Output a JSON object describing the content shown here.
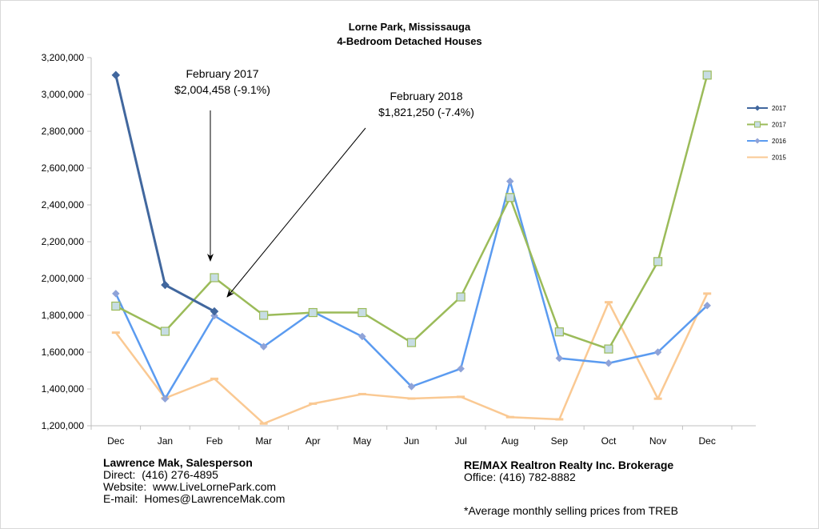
{
  "colors": {
    "series_2017_dark": "#41679e",
    "series_2017_green": "#9bbb59",
    "series_2017_green_marker": "#c7dde4",
    "series_2016": "#5b9bf0",
    "series_2016_marker": "#8fa3d8",
    "series_2015": "#fac993",
    "grid_axis": "#bfbfbf"
  },
  "footer": {
    "left_name": "Lawrence Mak, Salesperson",
    "left_direct": "Direct:  (416) 276-4895",
    "left_website": "Website:  www.LiveLornePark.com",
    "left_email": "E-mail:  Homes@LawrenceMak.com",
    "right_brokerage": "RE/MAX Realtron Realty Inc. Brokerage",
    "right_office": "Office: (416) 782-8882",
    "note": "*Average monthly selling prices from TREB"
  },
  "chart_data": {
    "type": "line",
    "title": "Lorne Park, Mississauga",
    "subtitle": "4-Bedroom Detached Houses",
    "xlabel": "",
    "ylabel": "",
    "categories": [
      "Dec",
      "Jan",
      "Feb",
      "Mar",
      "Apr",
      "May",
      "Jun",
      "Jul",
      "Aug",
      "Sep",
      "Oct",
      "Nov",
      "Dec"
    ],
    "ylim": [
      1200000,
      3200000
    ],
    "yticks": [
      1200000,
      1400000,
      1600000,
      1800000,
      2000000,
      2200000,
      2400000,
      2600000,
      2800000,
      3000000,
      3200000
    ],
    "ytick_labels": [
      "1,200,000",
      "1,400,000",
      "1,600,000",
      "1,800,000",
      "2,000,000",
      "2,200,000",
      "2,400,000",
      "2,600,000",
      "2,800,000",
      "3,000,000",
      "3,200,000"
    ],
    "grid": false,
    "legend_position": "right",
    "series": [
      {
        "name": "2017",
        "color_key": "series_2017_dark",
        "marker": "diamond",
        "values": [
          3105000,
          1965000,
          1821250,
          null,
          null,
          null,
          null,
          null,
          null,
          null,
          null,
          null,
          null
        ]
      },
      {
        "name": "2017",
        "color_key": "series_2017_green",
        "marker": "square",
        "values": [
          1850000,
          1713000,
          2004458,
          1800000,
          1815000,
          1815000,
          1652000,
          1900000,
          2440000,
          1710000,
          1617000,
          2092000,
          3105000
        ]
      },
      {
        "name": "2016",
        "color_key": "series_2016",
        "marker": "diamond",
        "values": [
          1918000,
          1347000,
          1798000,
          1630000,
          1820000,
          1685000,
          1413000,
          1510000,
          2528000,
          1567000,
          1540000,
          1600000,
          1853000
        ]
      },
      {
        "name": "2015",
        "color_key": "series_2015",
        "marker": "dash",
        "values": [
          1706000,
          1350000,
          1455000,
          1212000,
          1320000,
          1372000,
          1348000,
          1357000,
          1247000,
          1235000,
          1871000,
          1347000,
          1918000
        ]
      }
    ],
    "annotations": [
      {
        "line1": "February 2017",
        "line2": "$2,004,458 (-9.1%)",
        "target_category": "Feb",
        "target_value": 2004458
      },
      {
        "line1": "February 2018",
        "line2": "$1,821,250 (-7.4%)",
        "target_category": "Feb",
        "target_value": 1821250
      }
    ]
  }
}
